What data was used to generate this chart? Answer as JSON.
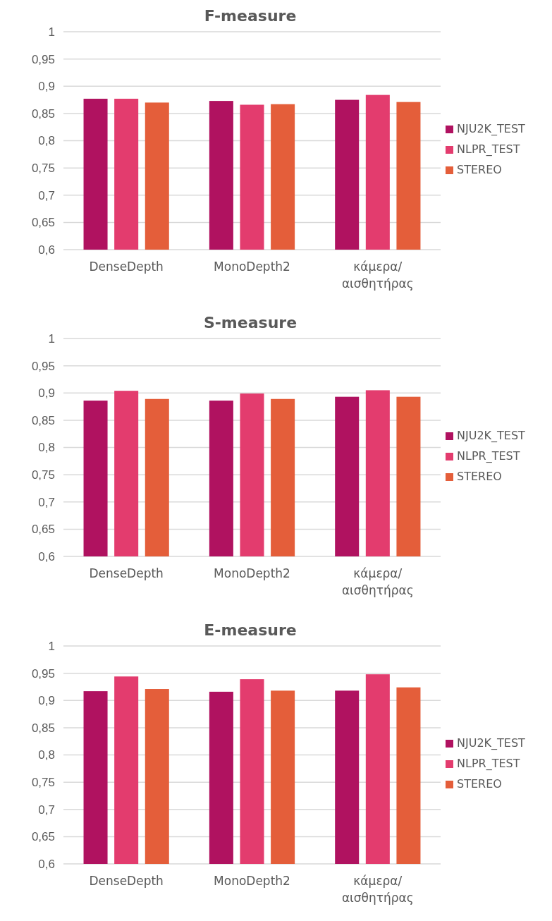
{
  "chart_data": [
    {
      "type": "bar",
      "title": "F-measure",
      "categories": [
        "DenseDepth",
        "MonoDepth2",
        "κάμερα/ αισθητήρας"
      ],
      "series": [
        {
          "name": "NJU2K_TEST",
          "color": "#b01260",
          "values": [
            0.877,
            0.873,
            0.875
          ]
        },
        {
          "name": "NLPR_TEST",
          "color": "#e33c6e",
          "values": [
            0.877,
            0.866,
            0.884
          ]
        },
        {
          "name": "STEREO",
          "color": "#e45e3a",
          "values": [
            0.87,
            0.867,
            0.871
          ]
        }
      ],
      "ylim": [
        0.6,
        1
      ],
      "yticks": [
        {
          "value": 0.6,
          "label": "0,6"
        },
        {
          "value": 0.65,
          "label": "0,65"
        },
        {
          "value": 0.7,
          "label": "0,7"
        },
        {
          "value": 0.75,
          "label": "0,75"
        },
        {
          "value": 0.8,
          "label": "0,8"
        },
        {
          "value": 0.85,
          "label": "0,85"
        },
        {
          "value": 0.9,
          "label": "0,9"
        },
        {
          "value": 0.95,
          "label": "0,95"
        },
        {
          "value": 1,
          "label": "1"
        }
      ],
      "grid": "y",
      "legend": "right"
    },
    {
      "type": "bar",
      "title": "S-measure",
      "categories": [
        "DenseDepth",
        "MonoDepth2",
        "κάμερα/ αισθητήρας"
      ],
      "series": [
        {
          "name": "NJU2K_TEST",
          "color": "#b01260",
          "values": [
            0.886,
            0.886,
            0.893
          ]
        },
        {
          "name": "NLPR_TEST",
          "color": "#e33c6e",
          "values": [
            0.904,
            0.899,
            0.905
          ]
        },
        {
          "name": "STEREO",
          "color": "#e45e3a",
          "values": [
            0.889,
            0.889,
            0.893
          ]
        }
      ],
      "ylim": [
        0.6,
        1
      ],
      "yticks": [
        {
          "value": 0.6,
          "label": "0,6"
        },
        {
          "value": 0.65,
          "label": "0,65"
        },
        {
          "value": 0.7,
          "label": "0,7"
        },
        {
          "value": 0.75,
          "label": "0,75"
        },
        {
          "value": 0.8,
          "label": "0,8"
        },
        {
          "value": 0.85,
          "label": "0,85"
        },
        {
          "value": 0.9,
          "label": "0,9"
        },
        {
          "value": 0.95,
          "label": "0,95"
        },
        {
          "value": 1,
          "label": "1"
        }
      ],
      "grid": "y",
      "legend": "right"
    },
    {
      "type": "bar",
      "title": "E-measure",
      "categories": [
        "DenseDepth",
        "MonoDepth2",
        "κάμερα/ αισθητήρας"
      ],
      "series": [
        {
          "name": "NJU2K_TEST",
          "color": "#b01260",
          "values": [
            0.917,
            0.916,
            0.918
          ]
        },
        {
          "name": "NLPR_TEST",
          "color": "#e33c6e",
          "values": [
            0.944,
            0.939,
            0.948
          ]
        },
        {
          "name": "STEREO",
          "color": "#e45e3a",
          "values": [
            0.921,
            0.918,
            0.924
          ]
        }
      ],
      "ylim": [
        0.6,
        1
      ],
      "yticks": [
        {
          "value": 0.6,
          "label": "0,6"
        },
        {
          "value": 0.65,
          "label": "0,65"
        },
        {
          "value": 0.7,
          "label": "0,7"
        },
        {
          "value": 0.75,
          "label": "0,75"
        },
        {
          "value": 0.8,
          "label": "0,8"
        },
        {
          "value": 0.85,
          "label": "0,85"
        },
        {
          "value": 0.9,
          "label": "0,9"
        },
        {
          "value": 0.95,
          "label": "0,95"
        },
        {
          "value": 1,
          "label": "1"
        }
      ],
      "grid": "y",
      "legend": "right"
    }
  ]
}
